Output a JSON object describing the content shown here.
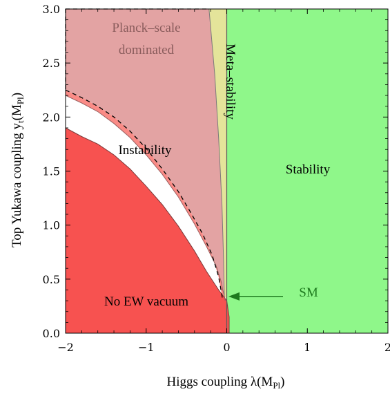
{
  "chart_data": {
    "type": "area",
    "title": "",
    "xlabel": "Higgs coupling λ(M",
    "xlabel_sub": "Pl",
    "xlabel_end": ")",
    "ylabel": "Top Yukawa coupling y",
    "ylabel_sub_t": "t",
    "ylabel_mid": "(M",
    "ylabel_sub": "Pl",
    "ylabel_end": ")",
    "xlim": [
      -2,
      2
    ],
    "ylim": [
      0,
      3
    ],
    "xticks": [
      -2,
      -1,
      0,
      1,
      2
    ],
    "xtick_labels": [
      "−2",
      "−1",
      "0",
      "1",
      "2"
    ],
    "yticks": [
      0,
      0.5,
      1,
      1.5,
      2,
      2.5,
      3
    ],
    "ytick_labels": [
      "0.0",
      "0.5",
      "1.0",
      "1.5",
      "2.0",
      "2.5",
      "3.0"
    ],
    "grid": false,
    "colors": {
      "stability": "#8ff78a",
      "metastability": "#e4e49a",
      "planck": "#e3a3a3",
      "instability": "#fa8b86",
      "no_ew": "#f75250",
      "arrow": "#1e7a1e",
      "region_text_planck": "#8a5c5c"
    },
    "regions": [
      {
        "name": "No EW vacuum",
        "boundary": [
          [
            -2,
            1.9
          ],
          [
            -1.8,
            1.82
          ],
          [
            -1.6,
            1.75
          ],
          [
            -1.4,
            1.65
          ],
          [
            -1.2,
            1.52
          ],
          [
            -1.0,
            1.36
          ],
          [
            -0.8,
            1.19
          ],
          [
            -0.6,
            0.99
          ],
          [
            -0.4,
            0.76
          ],
          [
            -0.25,
            0.57
          ],
          [
            -0.1,
            0.4
          ],
          [
            0.0,
            0.3
          ],
          [
            0.03,
            0.15
          ],
          [
            0.03,
            0
          ]
        ]
      },
      {
        "name": "Instability",
        "boundary": [
          [
            -2,
            2.2
          ],
          [
            -1.8,
            2.13
          ],
          [
            -1.6,
            2.05
          ],
          [
            -1.4,
            1.94
          ],
          [
            -1.2,
            1.81
          ],
          [
            -1.0,
            1.65
          ],
          [
            -0.8,
            1.47
          ],
          [
            -0.6,
            1.26
          ],
          [
            -0.4,
            1.01
          ],
          [
            -0.25,
            0.8
          ],
          [
            -0.13,
            0.62
          ],
          [
            -0.07,
            0.48
          ],
          [
            -0.05,
            0.4
          ],
          [
            -0.03,
            0.35
          ],
          [
            -0.02,
            0.3
          ]
        ]
      },
      {
        "name": "Planck–scale dominated",
        "dashed_boundary": [
          [
            -2,
            2.25
          ],
          [
            -1.8,
            2.18
          ],
          [
            -1.6,
            2.1
          ],
          [
            -1.4,
            2.0
          ],
          [
            -1.2,
            1.87
          ],
          [
            -1.0,
            1.71
          ],
          [
            -0.8,
            1.52
          ],
          [
            -0.6,
            1.31
          ],
          [
            -0.45,
            1.12
          ],
          [
            -0.3,
            0.92
          ],
          [
            -0.18,
            0.72
          ],
          [
            -0.1,
            0.52
          ],
          [
            -0.06,
            0.35
          ],
          [
            -0.05,
            0.3
          ]
        ],
        "right_boundary": [
          [
            -0.22,
            3.0
          ],
          [
            -0.15,
            2.4
          ],
          [
            -0.1,
            1.8
          ],
          [
            -0.06,
            1.2
          ],
          [
            -0.04,
            0.7
          ],
          [
            -0.03,
            0.35
          ]
        ]
      },
      {
        "name": "Meta–stability",
        "x_range_at_top": [
          -0.22,
          0.0
        ]
      },
      {
        "name": "Stability",
        "x_min": 0.0
      }
    ],
    "annotations": [
      {
        "text": "SM",
        "arrow_to": [
          -0.03,
          0.34
        ]
      }
    ]
  },
  "labels": {
    "planck_line1": "Planck–scale",
    "planck_line2": "dominated",
    "instability": "Instability",
    "no_ew": "No EW vacuum",
    "stability": "Stability",
    "metastability": "Meta–stability",
    "sm": "SM"
  }
}
